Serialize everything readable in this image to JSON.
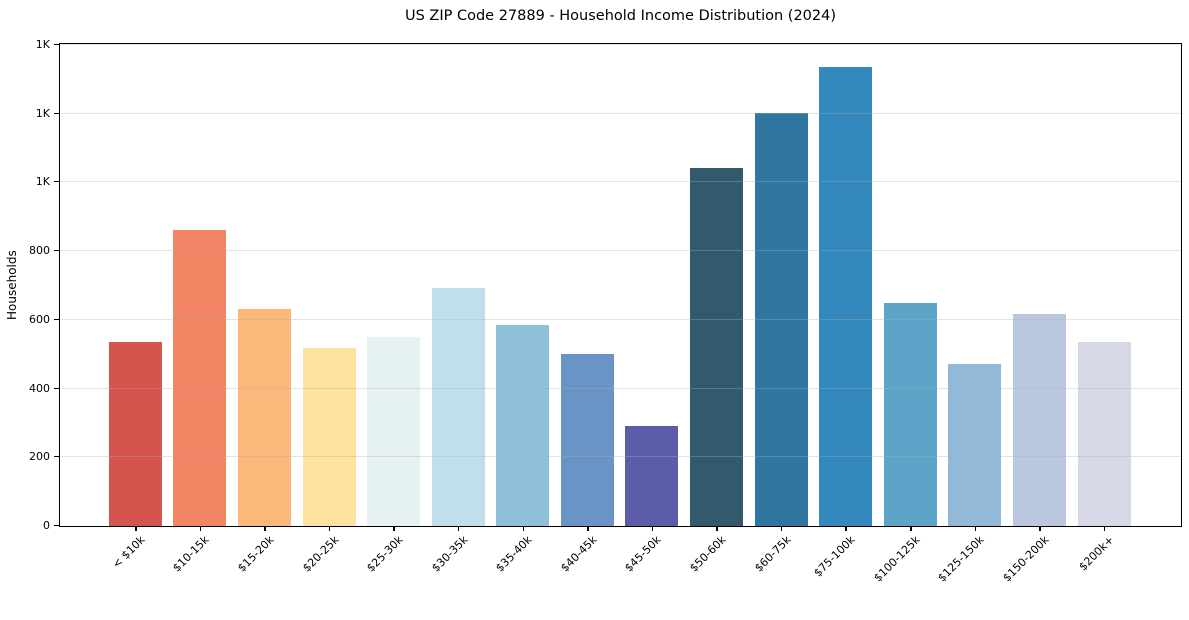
{
  "title": "US ZIP Code 27889 - Household Income Distribution (2024)",
  "chart_data": {
    "type": "bar",
    "title": "US ZIP Code 27889 - Household Income Distribution (2024)",
    "xlabel": "",
    "ylabel": "Households",
    "categories": [
      "< $10k",
      "$10-15k",
      "$15-20k",
      "$20-25k",
      "$25-30k",
      "$30-35k",
      "$35-40k",
      "$40-45k",
      "$45-50k",
      "$50-60k",
      "$60-75k",
      "$75-100k",
      "$100-125k",
      "$125-150k",
      "$150-200k",
      "$200k+"
    ],
    "values": [
      535,
      863,
      633,
      518,
      551,
      694,
      584,
      502,
      292,
      1041,
      1201,
      1337,
      650,
      471,
      616,
      537
    ],
    "bar_colors": [
      "#d6544e",
      "#f28664",
      "#fab97a",
      "#fde2a0",
      "#e6f1f2",
      "#c0dfeb",
      "#8fc0da",
      "#6a93c6",
      "#5b5caa",
      "#335a6c",
      "#2f77a1",
      "#3389bd",
      "#5ca4c8",
      "#92b9d7",
      "#b9c8de",
      "#d7d8e7"
    ],
    "ylim": [
      0,
      1400
    ],
    "yticks": [
      {
        "value": 0,
        "label": "0"
      },
      {
        "value": 200,
        "label": "200"
      },
      {
        "value": 400,
        "label": "400"
      },
      {
        "value": 600,
        "label": "600"
      },
      {
        "value": 800,
        "label": "800"
      },
      {
        "value": 1000,
        "label": "1K"
      },
      {
        "value": 1200,
        "label": "1K"
      },
      {
        "value": 1400,
        "label": "1K"
      }
    ],
    "grid": "horizontal gridlines, light gray, drawn over bars",
    "legend": "none",
    "x_tick_rotation_deg": 45,
    "background_color": "#ffffff",
    "spine_color": "#000000"
  }
}
